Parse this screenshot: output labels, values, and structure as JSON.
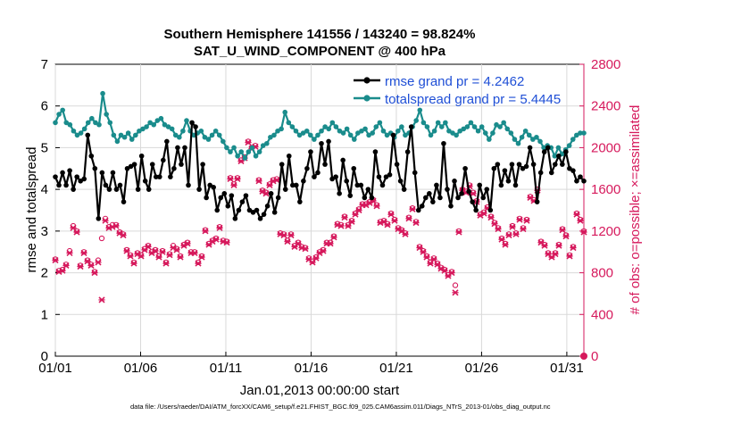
{
  "chart_data": {
    "type": "line",
    "title": "Southern Hemisphere 141556 / 143240 = 98.824%",
    "subtitle": "SAT_U_WIND_COMPONENT @ 400 hPa",
    "xlabel": "Jan.01,2013 00:00:00 start",
    "ylabel_left": "rmse and totalspread",
    "ylabel_right": "# of obs: o=possible; ×=assimilated",
    "footnote": "data file: /Users/raeder/DAI/ATM_forcXX/CAM6_setup/f.e21.FHIST_BGC.f09_025.CAM6assim.011/Diags_NTrS_2013-01/obs_diag_output.nc",
    "xlim": [
      1,
      32
    ],
    "ylim_left": [
      0,
      7
    ],
    "ylim_right": [
      0,
      2800
    ],
    "x_ticks": [
      {
        "value": 1,
        "label": "01/01"
      },
      {
        "value": 6,
        "label": "01/06"
      },
      {
        "value": 11,
        "label": "01/11"
      },
      {
        "value": 16,
        "label": "01/16"
      },
      {
        "value": 21,
        "label": "01/21"
      },
      {
        "value": 26,
        "label": "01/26"
      },
      {
        "value": 31,
        "label": "01/31"
      }
    ],
    "y_ticks_left": [
      "0",
      "1",
      "2",
      "3",
      "4",
      "5",
      "6",
      "7"
    ],
    "y_ticks_right": [
      "0",
      "400",
      "800",
      "1200",
      "1600",
      "2000",
      "2400",
      "2800"
    ],
    "legend": [
      "rmse grand pr = 4.2462",
      "totalspread grand pr = 5.4445"
    ],
    "colors": {
      "rmse": "#000000",
      "spread": "#1a8c8c",
      "obs": "#d6195c",
      "right_axis": "#d6195c",
      "legend_text": "#1f4fd6"
    },
    "series": [
      {
        "name": "rmse",
        "values": [
          4.3,
          4.1,
          4.4,
          4.1,
          4.45,
          4.0,
          4.3,
          4.2,
          4.25,
          5.3,
          4.8,
          4.5,
          3.3,
          4.4,
          4.1,
          4.0,
          4.4,
          4.0,
          4.1,
          3.7,
          4.5,
          4.55,
          4.6,
          4.0,
          4.8,
          4.2,
          4.0,
          4.6,
          4.3,
          4.3,
          4.7,
          5.15,
          4.3,
          4.5,
          5.0,
          4.6,
          5.0,
          4.1,
          5.6,
          5.5,
          4.0,
          4.6,
          3.8,
          4.1,
          4.05,
          3.5,
          3.8,
          3.9,
          3.6,
          3.85,
          3.3,
          3.5,
          3.7,
          3.85,
          3.5,
          3.45,
          3.5,
          3.3,
          3.4,
          3.6,
          3.9,
          3.45,
          3.8,
          4.6,
          4.0,
          4.8,
          4.1,
          4.1,
          3.7,
          4.2,
          4.5,
          4.9,
          4.3,
          4.4,
          5.1,
          4.6,
          5.15,
          4.25,
          4.3,
          3.9,
          4.7,
          4.2,
          3.85,
          4.5,
          4.1,
          4.1,
          3.8,
          4.0,
          3.8,
          4.9,
          4.3,
          4.1,
          4.3,
          4.35,
          5.3,
          4.6,
          4.2,
          4.0,
          4.9,
          5.5,
          4.4,
          3.5,
          3.6,
          3.8,
          3.9,
          3.7,
          4.1,
          3.8,
          5.1,
          4.0,
          3.6,
          4.2,
          3.8,
          3.9,
          4.5,
          3.95,
          3.7,
          3.5,
          4.1,
          3.8,
          4.0,
          3.5,
          4.5,
          4.6,
          4.1,
          4.45,
          4.2,
          4.6,
          4.1,
          4.6,
          4.5,
          4.55,
          5.0,
          4.6,
          3.7,
          4.4,
          4.9,
          5.0,
          4.4,
          4.6,
          4.8,
          4.6,
          4.9,
          4.5,
          4.45,
          4.2,
          4.3,
          4.2
        ]
      },
      {
        "name": "totalspread",
        "values": [
          5.6,
          5.8,
          5.9,
          5.6,
          5.55,
          5.4,
          5.3,
          5.35,
          5.45,
          5.6,
          5.7,
          5.6,
          5.55,
          6.3,
          5.8,
          5.6,
          5.3,
          5.15,
          5.3,
          5.25,
          5.35,
          5.2,
          5.3,
          5.4,
          5.45,
          5.5,
          5.6,
          5.55,
          5.65,
          5.7,
          5.55,
          5.5,
          5.45,
          5.3,
          5.25,
          5.4,
          5.65,
          5.4,
          5.3,
          5.35,
          5.4,
          5.25,
          5.2,
          5.3,
          5.4,
          5.3,
          5.15,
          5.0,
          4.9,
          5.0,
          4.8,
          4.9,
          4.75,
          4.9,
          5.0,
          4.8,
          4.9,
          5.05,
          5.1,
          5.25,
          5.3,
          5.4,
          5.45,
          5.85,
          5.6,
          5.5,
          5.4,
          5.3,
          5.35,
          5.4,
          5.3,
          5.2,
          5.3,
          5.4,
          5.5,
          5.45,
          5.6,
          5.5,
          5.4,
          5.35,
          5.45,
          5.3,
          5.2,
          5.35,
          5.4,
          5.45,
          5.3,
          5.35,
          5.5,
          5.6,
          5.4,
          5.3,
          5.35,
          5.25,
          5.4,
          5.5,
          5.3,
          5.35,
          5.5,
          5.65,
          5.9,
          5.6,
          5.5,
          5.3,
          5.4,
          5.6,
          5.5,
          5.6,
          5.4,
          5.35,
          5.3,
          5.4,
          5.45,
          5.5,
          5.6,
          5.5,
          5.4,
          5.5,
          5.35,
          5.2,
          5.35,
          5.55,
          5.5,
          5.6,
          5.45,
          5.35,
          5.2,
          5.1,
          5.25,
          5.4,
          5.3,
          5.2,
          5.25,
          5.15,
          5.0,
          5.05,
          5.0,
          4.8,
          5.0,
          4.85,
          4.95,
          5.05,
          5.2,
          5.3,
          5.35,
          5.35
        ]
      },
      {
        "name": "obs_possible",
        "values": [
          930,
          820,
          830,
          880,
          1010,
          1250,
          1200,
          870,
          1000,
          920,
          880,
          810,
          920,
          1130,
          1320,
          1240,
          1260,
          1260,
          1190,
          1170,
          1020,
          970,
          900,
          990,
          970,
          1030,
          1060,
          1000,
          1020,
          960,
          1010,
          900,
          980,
          1060,
          1030,
          960,
          1070,
          1090,
          1000,
          1000,
          900,
          960,
          1210,
          1080,
          1110,
          1130,
          1240,
          1110,
          1100,
          1710,
          1650,
          1710,
          1880,
          1910,
          2060,
          2000,
          2020,
          1690,
          1590,
          1570,
          1650,
          1690,
          1700,
          1180,
          1170,
          1110,
          1170,
          1060,
          1090,
          1050,
          1040,
          940,
          910,
          950,
          1000,
          1020,
          1090,
          1090,
          1150,
          1270,
          1260,
          1340,
          1260,
          1300,
          1370,
          1410,
          1460,
          1460,
          1480,
          1500,
          1450,
          1290,
          1300,
          1270,
          1370,
          1310,
          1230,
          1210,
          1180,
          1330,
          1420,
          1290,
          1050,
          1010,
          960,
          900,
          940,
          890,
          850,
          830,
          780,
          810,
          680,
          1200,
          1600,
          1580,
          1640,
          1570,
          1490,
          1360,
          1380,
          1430,
          1340,
          1280,
          1230,
          1130,
          1080,
          1170,
          1250,
          1180,
          1320,
          1230,
          1310,
          1530,
          1500,
          1600,
          1100,
          1070,
          990,
          960,
          990,
          1070,
          1220,
          1160,
          970,
          1050,
          1370,
          1310,
          1200
        ]
      },
      {
        "name": "obs_assimilated",
        "values": [
          920,
          810,
          820,
          870,
          990,
          1230,
          1190,
          860,
          990,
          910,
          870,
          800,
          900,
          540,
          1300,
          1230,
          1240,
          1250,
          1180,
          1160,
          1010,
          960,
          890,
          980,
          960,
          1020,
          1050,
          990,
          1010,
          950,
          1000,
          890,
          970,
          1040,
          1020,
          950,
          1060,
          1080,
          990,
          990,
          890,
          950,
          1200,
          1070,
          1100,
          1120,
          1230,
          1100,
          1090,
          1700,
          1640,
          1700,
          1870,
          1900,
          2050,
          1990,
          2010,
          1680,
          1580,
          1560,
          1640,
          1680,
          1690,
          1170,
          1160,
          1100,
          1160,
          1050,
          1080,
          1040,
          1030,
          930,
          900,
          940,
          990,
          1010,
          1080,
          1080,
          1140,
          1260,
          1250,
          1330,
          1250,
          1290,
          1360,
          1400,
          1450,
          1450,
          1470,
          1490,
          1440,
          1280,
          1290,
          1260,
          1360,
          1300,
          1220,
          1200,
          1170,
          1320,
          1410,
          1280,
          1040,
          1000,
          950,
          890,
          930,
          880,
          840,
          820,
          770,
          800,
          610,
          1190,
          1590,
          1570,
          1630,
          1560,
          1480,
          1350,
          1370,
          1420,
          1330,
          1270,
          1220,
          1120,
          1070,
          1160,
          1240,
          1170,
          1310,
          1220,
          1300,
          1520,
          1490,
          1590,
          1090,
          1060,
          980,
          950,
          980,
          1060,
          1210,
          1150,
          960,
          1040,
          1360,
          1300,
          1190
        ]
      }
    ]
  }
}
